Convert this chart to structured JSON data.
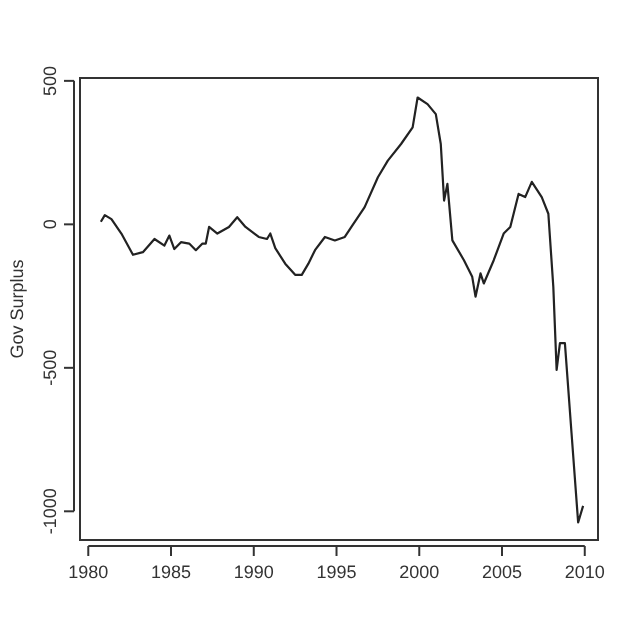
{
  "chart_data": {
    "type": "line",
    "ylabel": "Gov Surplus",
    "xlim": [
      1979.5,
      2010.8
    ],
    "ylim": [
      -1100,
      510
    ],
    "xticks": [
      1980,
      1985,
      1990,
      1995,
      2000,
      2005,
      2010
    ],
    "yticks": [
      -1000,
      -500,
      0,
      500
    ],
    "grid": false,
    "marker": "none",
    "line_style": "solid",
    "series": [
      {
        "color": "#222222",
        "x": [
          1980.76,
          1981.0,
          1981.4,
          1982.0,
          1982.7,
          1983.3,
          1984.0,
          1984.6,
          1984.9,
          1985.2,
          1985.6,
          1986.1,
          1986.5,
          1986.9,
          1987.1,
          1987.3,
          1987.8,
          1988.5,
          1989.0,
          1989.5,
          1990.3,
          1990.8,
          1991.0,
          1991.3,
          1991.9,
          1992.5,
          1992.9,
          1993.3,
          1993.7,
          1994.3,
          1994.9,
          1995.5,
          1995.9,
          1996.7,
          1997.5,
          1998.1,
          1998.9,
          1999.6,
          1999.9,
          2000.5,
          2001.0,
          2001.3,
          2001.5,
          2001.7,
          2002.0,
          2002.7,
          2003.2,
          2003.4,
          2003.7,
          2003.9,
          2004.5,
          2005.1,
          2005.5,
          2006.0,
          2006.4,
          2006.8,
          2007.4,
          2007.8,
          2008.1,
          2008.3,
          2008.5,
          2008.8,
          2009.2,
          2009.6,
          2009.9
        ],
        "values": [
          9,
          32,
          18,
          -32,
          -106,
          -97,
          -51,
          -74,
          -39,
          -86,
          -62,
          -67,
          -90,
          -67,
          -67,
          -9,
          -32,
          -9,
          25,
          -9,
          -44,
          -51,
          -32,
          -83,
          -137,
          -176,
          -176,
          -137,
          -90,
          -44,
          -56,
          -44,
          -9,
          60,
          164,
          222,
          280,
          338,
          442,
          419,
          384,
          280,
          83,
          141,
          -56,
          -125,
          -183,
          -252,
          -171,
          -206,
          -125,
          -32,
          -9,
          106,
          95,
          148,
          95,
          37,
          -218,
          -507,
          -414,
          -414,
          -727,
          -1039,
          -981
        ]
      }
    ]
  }
}
